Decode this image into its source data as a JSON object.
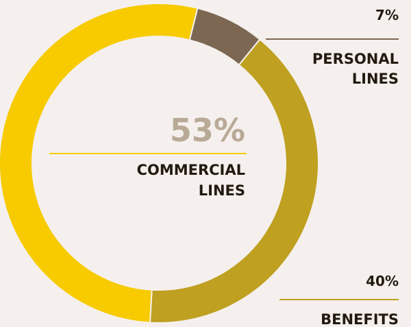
{
  "chart_data": {
    "type": "pie",
    "style": "donut",
    "slices": [
      {
        "label": "PERSONAL LINES",
        "value": 7,
        "display": "7%",
        "color": "#7b6752"
      },
      {
        "label": "BENEFITS",
        "value": 40,
        "display": "40%",
        "color": "#bfa020"
      },
      {
        "label": "COMMERCIAL LINES",
        "value": 53,
        "display": "53%",
        "color": "#f7cb00"
      }
    ],
    "labels": {
      "personal": {
        "pct": "7%",
        "line1": "PERSONAL",
        "line2": "LINES"
      },
      "benefits": {
        "pct": "40%",
        "line1": "BENEFITS"
      },
      "commercial": {
        "pct": "53%",
        "line1": "COMMERCIAL",
        "line2": "LINES"
      }
    },
    "colors": {
      "background": "#f5f0ed",
      "text": "#231a10",
      "highlight_pct": "#b8aa96",
      "personal_leader": "#7b6752",
      "benefits_leader": "#bfa020",
      "commercial_leader": "#f7cb00"
    }
  }
}
